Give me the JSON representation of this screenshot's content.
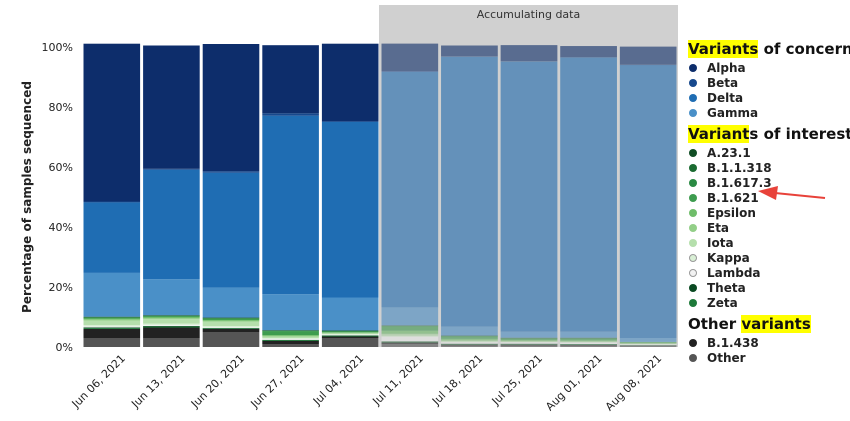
{
  "chart_data": {
    "type": "stacked-bar",
    "ylabel": "Percentage of samples sequenced",
    "ylim": [
      0,
      100
    ],
    "yticks": [
      "0%",
      "20%",
      "40%",
      "60%",
      "80%",
      "100%"
    ],
    "accumulating_label": "Accumulating data",
    "accumulating_from_index": 5,
    "categories": [
      "Jun 06, 2021",
      "Jun 13, 2021",
      "Jun 20, 2021",
      "Jun 27, 2021",
      "Jul 04, 2021",
      "Jul 11, 2021",
      "Jul 18, 2021",
      "Jul 25, 2021",
      "Aug 01, 2021",
      "Aug 08, 2021"
    ],
    "series": [
      {
        "name": "Other",
        "color": "#555555",
        "values": [
          3,
          3,
          5,
          1,
          3,
          1,
          0.5,
          0.5,
          0.5,
          0.3
        ]
      },
      {
        "name": "B.1.438",
        "color": "#222222",
        "values": [
          3,
          3.5,
          1,
          1,
          0.5,
          0.5,
          0.3,
          0.3,
          0.2,
          0.2
        ]
      },
      {
        "name": "Zeta",
        "color": "#1e7a3a",
        "values": [
          0.3,
          0.3,
          0.2,
          0.3,
          0.3,
          0.3,
          0.2,
          0.2,
          0.2,
          0.1
        ]
      },
      {
        "name": "Theta",
        "color": "#0a4a22",
        "values": [
          0.2,
          0.2,
          0.1,
          0.1,
          0.1,
          0.1,
          0.1,
          0.1,
          0.1,
          0
        ]
      },
      {
        "name": "Lambda",
        "color": "#f2f2f2",
        "values": [
          0.3,
          0.3,
          0.2,
          0.3,
          0.2,
          1.5,
          0.5,
          0.5,
          0.5,
          0.3
        ]
      },
      {
        "name": "Kappa",
        "color": "#d9efd5",
        "values": [
          0.5,
          0.5,
          0.5,
          0.3,
          0.2,
          0.3,
          0.2,
          0.1,
          0.1,
          0.1
        ]
      },
      {
        "name": "Iota",
        "color": "#b5dfac",
        "values": [
          1.5,
          1.5,
          1.5,
          0.5,
          0.3,
          0.5,
          0.3,
          0.2,
          0.2,
          0.1
        ]
      },
      {
        "name": "Eta",
        "color": "#93cf88",
        "values": [
          0.3,
          0.3,
          0.2,
          0.2,
          0.1,
          0.2,
          0.1,
          0.1,
          0.1,
          0.1
        ]
      },
      {
        "name": "Epsilon",
        "color": "#6fbd6a",
        "values": [
          0.4,
          0.4,
          0.3,
          0.3,
          0.2,
          1,
          0.5,
          0.3,
          0.3,
          0.2
        ]
      },
      {
        "name": "B.1.621",
        "color": "#3e9c4f",
        "values": [
          0.3,
          0.3,
          0.5,
          1.3,
          0.3,
          1.5,
          0.8,
          0.5,
          0.6,
          0.3
        ]
      },
      {
        "name": "B.1.617.3",
        "color": "#2a8a43",
        "values": [
          0.1,
          0.1,
          0.1,
          0.1,
          0.1,
          0.1,
          0.1,
          0.1,
          0.1,
          0
        ]
      },
      {
        "name": "B.1.1.318",
        "color": "#1a6b31",
        "values": [
          0.1,
          0.1,
          0.1,
          0.1,
          0.1,
          0.1,
          0.1,
          0.1,
          0.1,
          0
        ]
      },
      {
        "name": "A.23.1",
        "color": "#104d24",
        "values": [
          0.1,
          0.1,
          0.1,
          0.1,
          0.1,
          0.1,
          0.1,
          0.1,
          0.1,
          0
        ]
      },
      {
        "name": "Gamma",
        "color": "#4a90c8",
        "values": [
          14.6,
          12,
          10,
          12,
          11,
          6,
          3,
          2,
          2,
          1.3
        ]
      },
      {
        "name": "Delta",
        "color": "#1f6db3",
        "values": [
          23.5,
          36.5,
          38.3,
          59.5,
          58.5,
          78.5,
          89.9,
          90,
          91.4,
          91
        ]
      },
      {
        "name": "Beta",
        "color": "#17498d",
        "values": [
          0.3,
          0.3,
          0.5,
          0.8,
          0.3,
          0.3,
          0.2,
          0.2,
          0.1,
          0.1
        ]
      },
      {
        "name": "Alpha",
        "color": "#0d2d6b",
        "values": [
          52.6,
          41.1,
          42.4,
          22.7,
          25.8,
          9.1,
          3.6,
          5.3,
          3.7,
          6
        ]
      }
    ]
  },
  "legend": {
    "groups": [
      {
        "title_pre": "",
        "title_hl": "Variants",
        "title_post": " of concern",
        "items": [
          {
            "label": "Alpha",
            "color": "#0d2d6b"
          },
          {
            "label": "Beta",
            "color": "#17498d"
          },
          {
            "label": "Delta",
            "color": "#1f6db3"
          },
          {
            "label": "Gamma",
            "color": "#4a90c8"
          }
        ]
      },
      {
        "title_pre": "",
        "title_hl": "Variant",
        "title_post": "s of interest",
        "items": [
          {
            "label": "A.23.1",
            "color": "#104d24"
          },
          {
            "label": "B.1.1.318",
            "color": "#1a6b31"
          },
          {
            "label": "B.1.617.3",
            "color": "#2a8a43"
          },
          {
            "label": "B.1.621",
            "color": "#3e9c4f"
          },
          {
            "label": "Epsilon",
            "color": "#6fbd6a"
          },
          {
            "label": "Eta",
            "color": "#93cf88"
          },
          {
            "label": "Iota",
            "color": "#b5dfac"
          },
          {
            "label": "Kappa",
            "color": "#d9efd5"
          },
          {
            "label": "Lambda",
            "color": "#f2f2f2"
          },
          {
            "label": "Theta",
            "color": "#0a4a22"
          },
          {
            "label": "Zeta",
            "color": "#1e7a3a"
          }
        ]
      },
      {
        "title_pre": "Other ",
        "title_hl": "variants",
        "title_post": "",
        "items": [
          {
            "label": "B.1.438",
            "color": "#222222"
          },
          {
            "label": "Other",
            "color": "#555555"
          }
        ]
      }
    ]
  },
  "annotation": {
    "arrow_color": "#e8423a",
    "points_to": "B.1.621"
  }
}
